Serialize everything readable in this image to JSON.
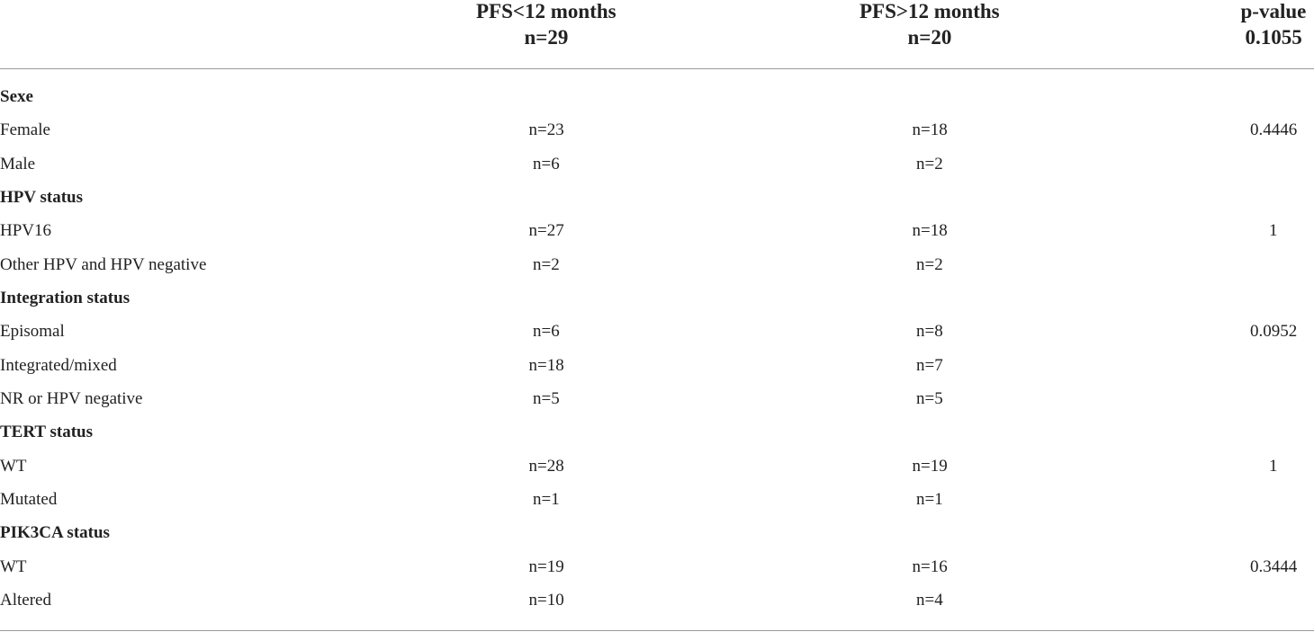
{
  "table": {
    "header": [
      [
        "PFS<12 months",
        "n=29"
      ],
      [
        "PFS>12 months",
        "n=20"
      ],
      [
        "p-value",
        "0.1055"
      ]
    ],
    "rows": [
      [
        "Sexe"
      ],
      [
        "Female",
        "n=23",
        "n=18",
        "0.4446"
      ],
      [
        "Male",
        "n=6",
        "n=2"
      ],
      [
        "HPV status"
      ],
      [
        "HPV16",
        "n=27",
        "n=18",
        "1"
      ],
      [
        "Other HPV and HPV negative",
        "n=2",
        "n=2"
      ],
      [
        "Integration status"
      ],
      [
        "Episomal",
        "n=6",
        "n=8",
        "0.0952"
      ],
      [
        "Integrated/mixed",
        "n=18",
        "n=7"
      ],
      [
        "NR or HPV negative",
        "n=5",
        "n=5"
      ],
      [
        "TERT status"
      ],
      [
        "WT",
        "n=28",
        "n=19",
        "1"
      ],
      [
        "Mutated",
        "n=1",
        "n=1"
      ],
      [
        "PIK3CA status"
      ],
      [
        "WT",
        "n=19",
        "n=16",
        "0.3444"
      ],
      [
        "Altered",
        "n=10",
        "n=4"
      ]
    ]
  }
}
